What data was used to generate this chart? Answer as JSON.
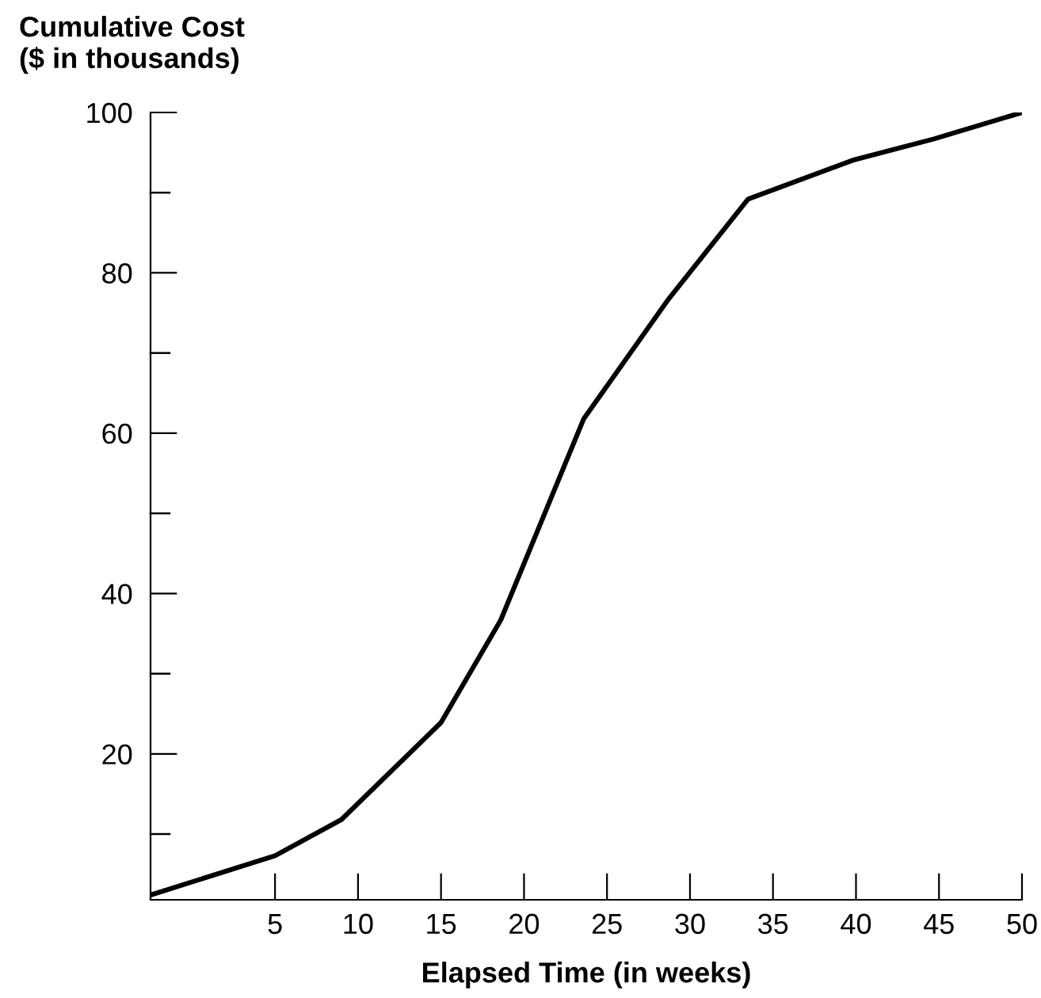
{
  "chart_data": {
    "type": "line",
    "ylabel": "Cumulative Cost\n($ in thousands)",
    "xlabel": "Elapsed Time (in weeks)",
    "x": [
      -2.5,
      5,
      9,
      15,
      18.6,
      23.6,
      28.7,
      33.5,
      39.9,
      44.7,
      50
    ],
    "series": [
      {
        "color": "#000000",
        "values": [
          2.4,
          7.3,
          11.8,
          23.9,
          36.7,
          61.8,
          76.7,
          89.2,
          94.1,
          96.7,
          100
        ]
      }
    ],
    "xlim": [
      -2.5,
      50
    ],
    "ylim": [
      1.8,
      100
    ],
    "xticks": [
      5,
      10,
      15,
      20,
      25,
      30,
      35,
      40,
      45,
      50
    ],
    "yticks": [
      {
        "value": 10,
        "label": null
      },
      20,
      {
        "value": 30,
        "label": null
      },
      40,
      {
        "value": 50,
        "label": null
      },
      60,
      {
        "value": 70,
        "label": null
      },
      80,
      {
        "value": 90,
        "label": null
      },
      100
    ],
    "grid": false,
    "legend": false,
    "marker": "none",
    "line_style": "solid"
  }
}
